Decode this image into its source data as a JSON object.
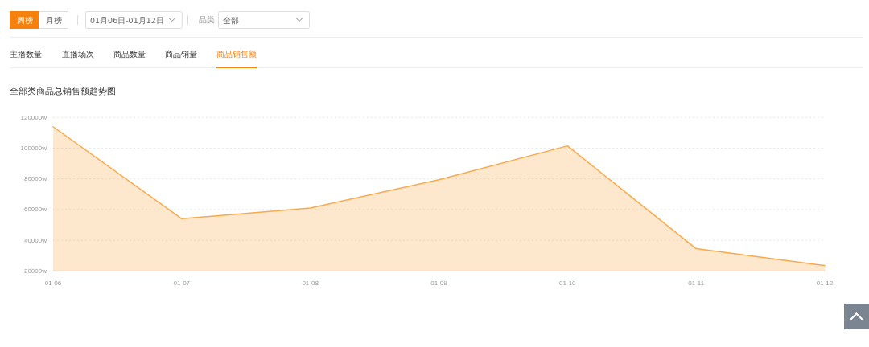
{
  "chart_data": {
    "type": "area",
    "title": "全部类商品总销售额趋势图",
    "categories": [
      "01-06",
      "01-07",
      "01-08",
      "01-09",
      "01-10",
      "01-11",
      "01-12"
    ],
    "series": [
      {
        "color": "#f8a94b",
        "values": [
          114000,
          54000,
          61000,
          79500,
          101500,
          34500,
          23500
        ]
      }
    ],
    "ylim": [
      20000,
      120000
    ],
    "yticks": [
      {
        "value": 20000,
        "label": "20000w"
      },
      {
        "value": 40000,
        "label": "40000w"
      },
      {
        "value": 60000,
        "label": "60000w"
      },
      {
        "value": 80000,
        "label": "80000w"
      },
      {
        "value": 100000,
        "label": "100000w"
      },
      {
        "value": 120000,
        "label": "120000w"
      }
    ],
    "grid": "y",
    "line_style": "solid",
    "annotations": [
      "周榜",
      "月榜",
      "01月06日-01月12日",
      "品类",
      "全部",
      "主播数量",
      "直播场次",
      "商品数量",
      "商品销量",
      "商品销售额"
    ]
  }
}
